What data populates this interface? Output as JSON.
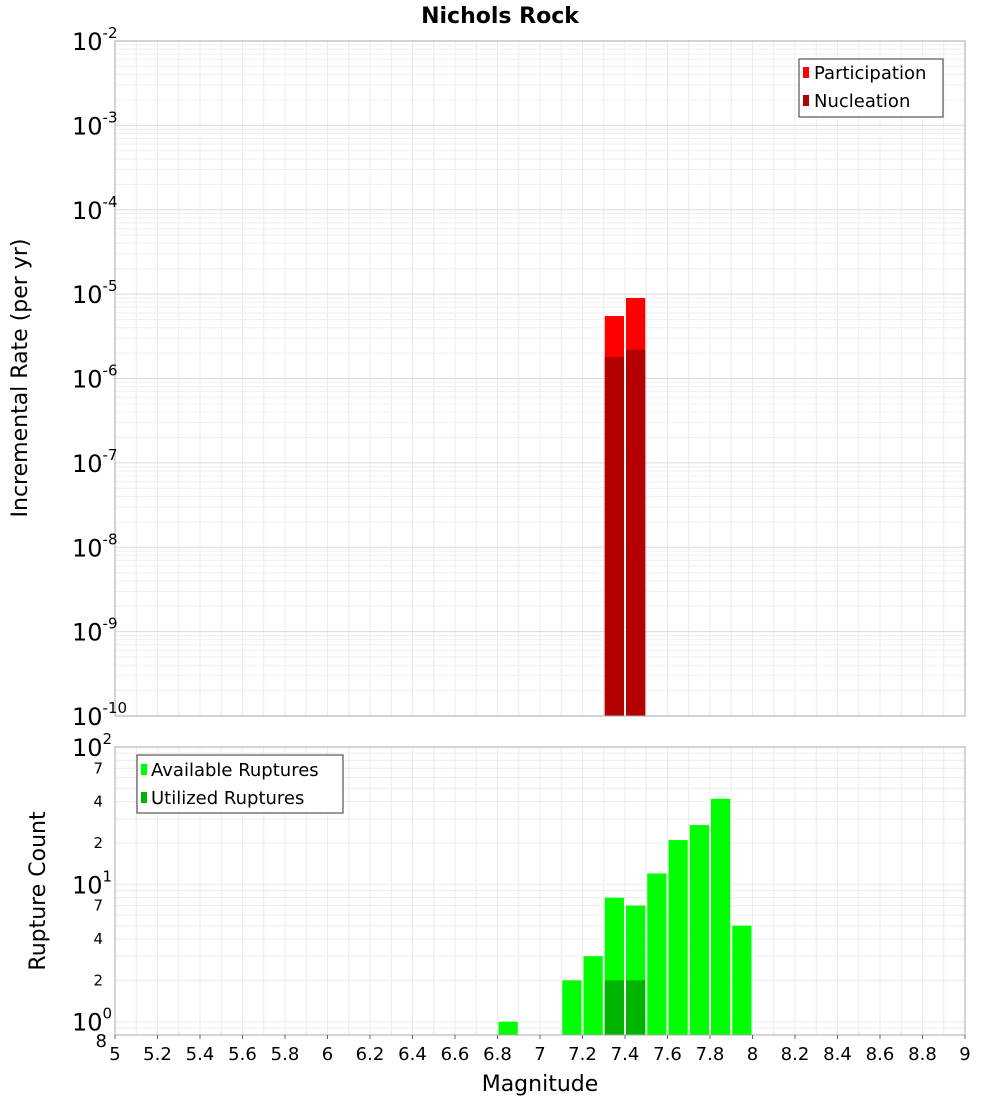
{
  "chart_data": [
    {
      "type": "bar",
      "title": "Nichols Rock",
      "xlabel": "",
      "ylabel": "Incremental Rate (per yr)",
      "yscale": "log",
      "ylim": [
        1e-10,
        0.01
      ],
      "xlim": [
        5,
        9
      ],
      "y_tick_exponents": [
        "-2",
        "-3",
        "-4",
        "-5",
        "-6",
        "-7",
        "-8",
        "-9",
        "-10"
      ],
      "y_tick_base": "10",
      "legend": {
        "position": "top-right",
        "entries": [
          {
            "label": "Participation",
            "color": "#ff0000"
          },
          {
            "label": "Nucleation",
            "color": "#b30000"
          }
        ]
      },
      "series": [
        {
          "name": "Participation",
          "color": "#ff0000",
          "points": [
            {
              "x": 7.35,
              "y": 5.5e-06
            },
            {
              "x": 7.45,
              "y": 9e-06
            }
          ]
        },
        {
          "name": "Nucleation",
          "color": "#b30000",
          "points": [
            {
              "x": 7.35,
              "y": 1.8e-06
            },
            {
              "x": 7.45,
              "y": 2.2e-06
            }
          ]
        }
      ]
    },
    {
      "type": "bar",
      "xlabel": "Magnitude",
      "ylabel": "Rupture Count",
      "yscale": "log",
      "ylim": [
        0.8,
        100
      ],
      "xlim": [
        5,
        9
      ],
      "y_major_ticks": [
        {
          "base": "10",
          "exp": "2",
          "value": 100
        },
        {
          "base": "10",
          "exp": "1",
          "value": 10
        },
        {
          "base": "10",
          "exp": "0",
          "value": 1
        }
      ],
      "y_minor_ticks": [
        {
          "label": "7",
          "value": 70
        },
        {
          "label": "4",
          "value": 40
        },
        {
          "label": "2",
          "value": 20
        },
        {
          "label": "7",
          "value": 7
        },
        {
          "label": "4",
          "value": 4
        },
        {
          "label": "2",
          "value": 2
        },
        {
          "label": "8",
          "value": 0.8
        }
      ],
      "x_ticks": [
        "5",
        "5.2",
        "5.4",
        "5.6",
        "5.8",
        "6",
        "6.2",
        "6.4",
        "6.6",
        "6.8",
        "7",
        "7.2",
        "7.4",
        "7.6",
        "7.8",
        "8",
        "8.2",
        "8.4",
        "8.6",
        "8.8",
        "9"
      ],
      "legend": {
        "position": "top-left",
        "entries": [
          {
            "label": "Available Ruptures",
            "color": "#00ff00"
          },
          {
            "label": "Utilized Ruptures",
            "color": "#00b300"
          }
        ]
      },
      "series": [
        {
          "name": "Available Ruptures",
          "color": "#00ff00",
          "points": [
            {
              "x": 6.85,
              "y": 1
            },
            {
              "x": 7.15,
              "y": 2
            },
            {
              "x": 7.25,
              "y": 3
            },
            {
              "x": 7.35,
              "y": 8
            },
            {
              "x": 7.45,
              "y": 7
            },
            {
              "x": 7.55,
              "y": 12
            },
            {
              "x": 7.65,
              "y": 21
            },
            {
              "x": 7.75,
              "y": 27
            },
            {
              "x": 7.85,
              "y": 42
            },
            {
              "x": 7.95,
              "y": 5
            }
          ]
        },
        {
          "name": "Utilized Ruptures",
          "color": "#00b300",
          "points": [
            {
              "x": 7.35,
              "y": 2
            },
            {
              "x": 7.45,
              "y": 2
            }
          ]
        }
      ]
    }
  ]
}
